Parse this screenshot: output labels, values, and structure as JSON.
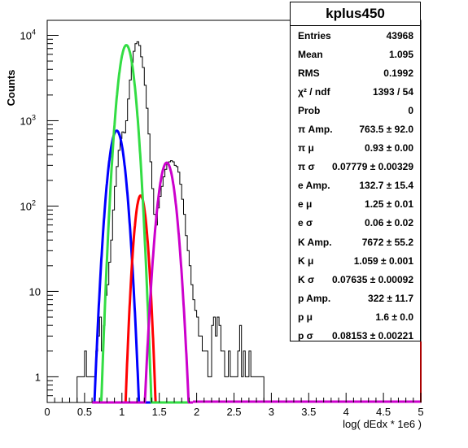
{
  "chart_data": {
    "type": "histogram",
    "title": "",
    "xlabel": "log( dEdx * 1e6 )",
    "ylabel": "Counts",
    "xlim": [
      0,
      5
    ],
    "ylim": [
      0.5,
      15000
    ],
    "yscale": "log",
    "x_ticks": [
      "0",
      "0.5",
      "1",
      "1.5",
      "2",
      "2.5",
      "3",
      "3.5",
      "4",
      "4.5",
      "5"
    ],
    "y_ticks": [
      {
        "value": 1,
        "label": "1"
      },
      {
        "value": 10,
        "label": "10"
      },
      {
        "value": 100,
        "label": "10",
        "exp": "2"
      },
      {
        "value": 1000,
        "label": "10",
        "exp": "3"
      },
      {
        "value": 10000,
        "label": "10",
        "exp": "4"
      }
    ],
    "histogram": {
      "bin_edges_start": 0.4,
      "bin_width": 0.025,
      "counts": [
        1,
        1,
        1,
        1,
        2,
        1,
        1,
        1,
        1,
        1,
        2,
        3,
        5,
        2,
        4,
        9,
        12,
        22,
        40,
        90,
        170,
        290,
        450,
        620,
        740,
        720,
        1000,
        1800,
        3000,
        4800,
        6500,
        8000,
        8400,
        7600,
        5600,
        4200,
        2600,
        1400,
        700,
        330,
        160,
        80,
        60,
        95,
        130,
        170,
        220,
        270,
        310,
        330,
        340,
        330,
        300,
        290,
        250,
        180,
        120,
        80,
        45,
        30,
        20,
        12,
        8,
        6,
        5,
        3,
        3,
        2,
        2,
        2,
        1,
        1,
        4,
        5,
        3,
        5,
        4,
        2,
        2,
        1,
        1,
        2,
        1,
        1,
        1,
        1,
        2,
        4,
        1,
        2,
        1,
        1,
        2,
        1,
        1,
        1,
        1,
        1,
        1,
        1
      ]
    },
    "series": [
      {
        "name": "pi",
        "color": "#0000ff",
        "amp": 763.5,
        "mu": 0.93,
        "sigma": 0.07779
      },
      {
        "name": "e",
        "color": "#ff0000",
        "amp": 132.7,
        "mu": 1.25,
        "sigma": 0.06
      },
      {
        "name": "K",
        "color": "#33dd44",
        "amp": 7672,
        "mu": 1.059,
        "sigma": 0.07635
      },
      {
        "name": "p",
        "color": "#cc00cc",
        "amp": 322,
        "mu": 1.6,
        "sigma": 0.08153
      }
    ],
    "stats_box": {
      "title": "kplus450",
      "rows": [
        {
          "label": "Entries",
          "value": "43968"
        },
        {
          "label": "Mean",
          "value": "1.095"
        },
        {
          "label": "RMS",
          "value": "0.1992"
        },
        {
          "label": "χ² / ndf",
          "value": "1393 / 54"
        },
        {
          "label": "Prob",
          "value": "0"
        },
        {
          "label": "π Amp.",
          "value": "763.5 ± 92.0"
        },
        {
          "label": "π μ",
          "value": "0.93 ± 0.00"
        },
        {
          "label": "π σ",
          "value": "0.07779 ± 0.00329"
        },
        {
          "label": "e Amp.",
          "value": "132.7 ± 15.4"
        },
        {
          "label": "e μ",
          "value": "1.25 ± 0.01"
        },
        {
          "label": "e σ",
          "value": "0.06 ± 0.02"
        },
        {
          "label": "K Amp.",
          "value": "7672 ± 55.2"
        },
        {
          "label": "K μ",
          "value": "1.059 ± 0.001"
        },
        {
          "label": "K σ",
          "value": "0.07635 ± 0.00092"
        },
        {
          "label": "p Amp.",
          "value": "322 ± 11.7"
        },
        {
          "label": "p μ",
          "value": "1.6 ± 0.0"
        },
        {
          "label": "p σ",
          "value": "0.08153 ± 0.00221"
        }
      ]
    }
  }
}
